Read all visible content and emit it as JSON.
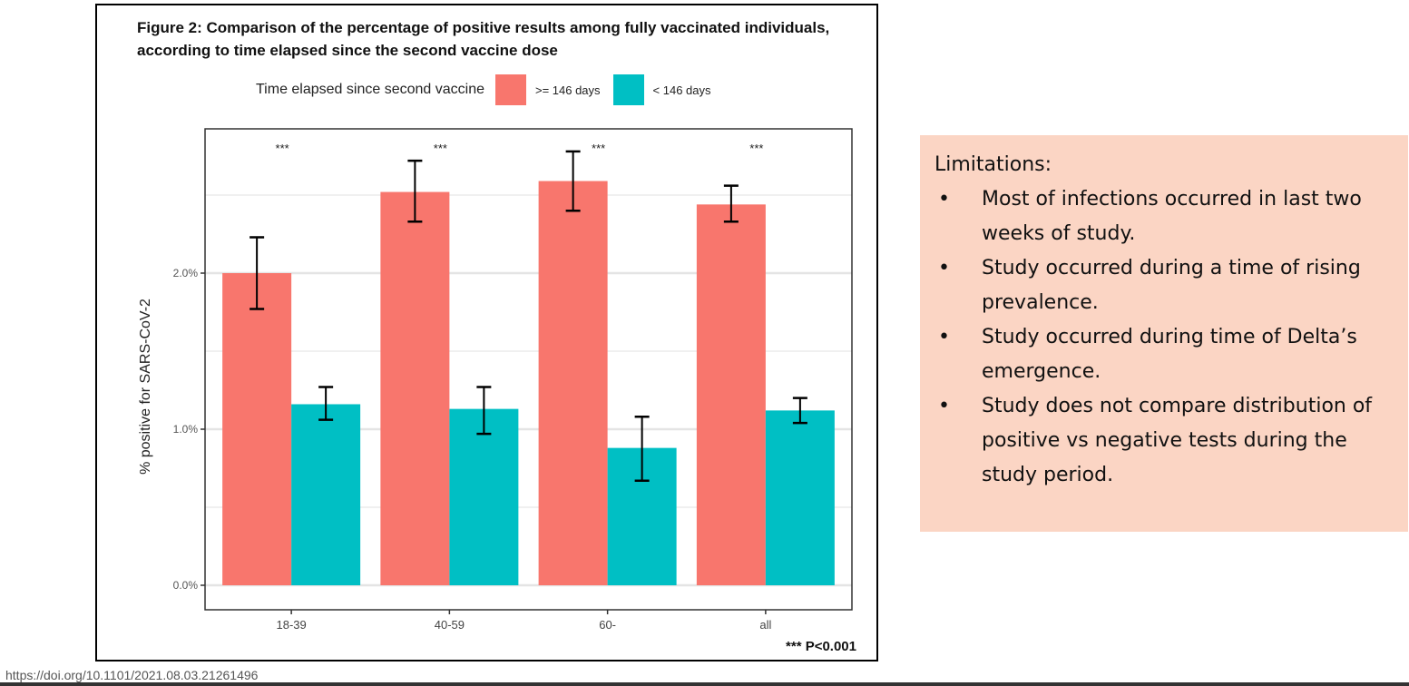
{
  "figure": {
    "title": "Figure 2: Comparison of the percentage of positive results among fully vaccinated individuals, according to time elapsed since the second vaccine dose",
    "p_note": "*** P<0.001"
  },
  "chart_data": {
    "type": "bar",
    "title": "Figure 2: Comparison of the percentage of positive results among fully vaccinated individuals, according to time elapsed since the second vaccine dose",
    "xlabel": "",
    "ylabel": "% positive for SARS-CoV-2",
    "categories": [
      "18-39",
      "40-59",
      "60-",
      "all"
    ],
    "ylim": [
      0,
      2.85
    ],
    "yticks": [
      0,
      1,
      2
    ],
    "ytick_labels": [
      "0.0%",
      "1.0%",
      "2.0%"
    ],
    "grid": true,
    "legend": {
      "title": "Time elapsed since second vaccine",
      "position": "top"
    },
    "series": [
      {
        "name": ">= 146 days",
        "color": "#f8766d",
        "values": [
          2.0,
          2.52,
          2.59,
          2.44
        ],
        "err_low": [
          1.77,
          2.33,
          2.4,
          2.33
        ],
        "err_high": [
          2.23,
          2.72,
          2.78,
          2.56
        ]
      },
      {
        "name": "< 146 days",
        "color": "#00bfc4",
        "values": [
          1.16,
          1.13,
          0.88,
          1.12
        ],
        "err_low": [
          1.06,
          0.97,
          0.67,
          1.04
        ],
        "err_high": [
          1.27,
          1.27,
          1.08,
          1.2
        ]
      }
    ],
    "annotations": [
      "***",
      "***",
      "***",
      "***"
    ]
  },
  "doi": "https://doi.org/10.1101/2021.08.03.21261496",
  "limitations": {
    "title": "Limitations:",
    "bullet": "•",
    "items": [
      "Most of infections occurred in last two weeks of study.",
      "Study occurred during a time of rising prevalence.",
      "Study occurred during time of Delta’s emergence.",
      "Study does not compare distribution of positive vs negative tests during the study period."
    ]
  }
}
